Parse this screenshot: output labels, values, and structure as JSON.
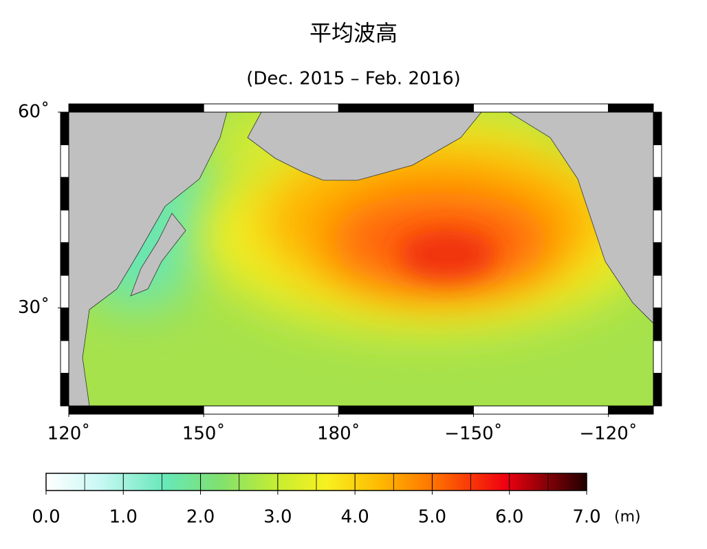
{
  "header": {
    "title": "平均波高",
    "subtitle": "(Dec. 2015 – Feb. 2016)"
  },
  "map": {
    "lonlim": [
      120,
      250
    ],
    "latlim": [
      15,
      60
    ],
    "lonticks": [
      {
        "value": 120,
        "label": "120˚"
      },
      {
        "value": 150,
        "label": "150˚"
      },
      {
        "value": 180,
        "label": "180˚"
      },
      {
        "value": -150,
        "label": "−150˚"
      },
      {
        "value": -120,
        "label": "−120˚"
      }
    ],
    "latticks": [
      {
        "value": 60,
        "label": "60˚"
      },
      {
        "value": 30,
        "label": "30˚"
      }
    ]
  },
  "colorbar": {
    "range": [
      0,
      7
    ],
    "unit": "(m)",
    "ticks": [
      {
        "value": 0,
        "label": "0.0"
      },
      {
        "value": 1,
        "label": "1.0"
      },
      {
        "value": 2,
        "label": "2.0"
      },
      {
        "value": 3,
        "label": "3.0"
      },
      {
        "value": 4,
        "label": "4.0"
      },
      {
        "value": 5,
        "label": "5.0"
      },
      {
        "value": 6,
        "label": "6.0"
      },
      {
        "value": 7,
        "label": "7.0"
      }
    ]
  }
}
